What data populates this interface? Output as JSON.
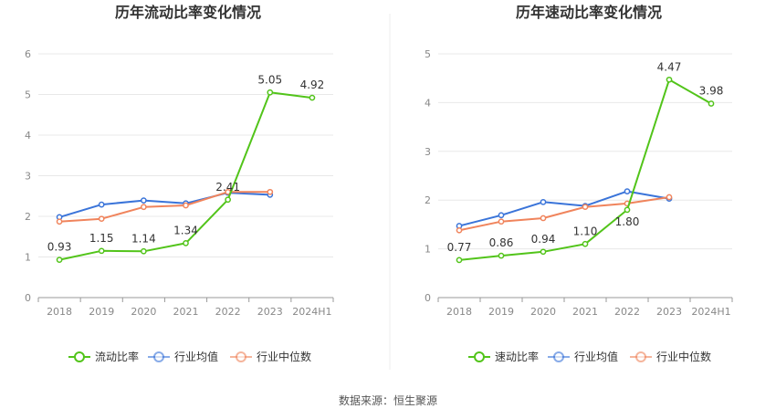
{
  "source_text": "数据来源：恒生聚源",
  "colors": {
    "primary": "#52c41a",
    "industry_avg": "#3a74d9",
    "industry_median": "#f0845c",
    "grid": "#e8e8e8",
    "axis": "#999999"
  },
  "chart_data": [
    {
      "type": "line",
      "title": "历年流动比率变化情况",
      "categories": [
        "2018",
        "2019",
        "2020",
        "2021",
        "2022",
        "2023",
        "2024H1"
      ],
      "ylim": [
        0,
        6
      ],
      "yticks": [
        0,
        1,
        2,
        3,
        4,
        5,
        6
      ],
      "grid": true,
      "legend_position": "bottom",
      "series": [
        {
          "name": "流动比率",
          "color": "#52c41a",
          "values": [
            0.93,
            1.15,
            1.14,
            1.34,
            2.41,
            5.05,
            4.92
          ],
          "labels": [
            "0.93",
            "1.15",
            "1.14",
            "1.34",
            "2.41",
            "5.05",
            "4.92"
          ]
        },
        {
          "name": "行业均值",
          "color": "#3a74d9",
          "values": [
            1.98,
            2.29,
            2.39,
            2.32,
            2.58,
            2.53,
            null
          ]
        },
        {
          "name": "行业中位数",
          "color": "#f0845c",
          "values": [
            1.87,
            1.94,
            2.23,
            2.27,
            2.6,
            2.6,
            null
          ]
        }
      ]
    },
    {
      "type": "line",
      "title": "历年速动比率变化情况",
      "categories": [
        "2018",
        "2019",
        "2020",
        "2021",
        "2022",
        "2023",
        "2024H1"
      ],
      "ylim": [
        0,
        5
      ],
      "yticks": [
        0,
        1,
        2,
        3,
        4,
        5
      ],
      "grid": true,
      "legend_position": "bottom",
      "series": [
        {
          "name": "速动比率",
          "color": "#52c41a",
          "values": [
            0.77,
            0.86,
            0.94,
            1.1,
            1.8,
            4.47,
            3.98
          ],
          "labels": [
            "0.77",
            "0.86",
            "0.94",
            "1.10",
            "1.80",
            "4.47",
            "3.98"
          ]
        },
        {
          "name": "行业均值",
          "color": "#3a74d9",
          "values": [
            1.47,
            1.69,
            1.96,
            1.88,
            2.18,
            2.03,
            null
          ]
        },
        {
          "name": "行业中位数",
          "color": "#f0845c",
          "values": [
            1.38,
            1.56,
            1.63,
            1.86,
            1.93,
            2.06,
            null
          ]
        }
      ]
    }
  ]
}
